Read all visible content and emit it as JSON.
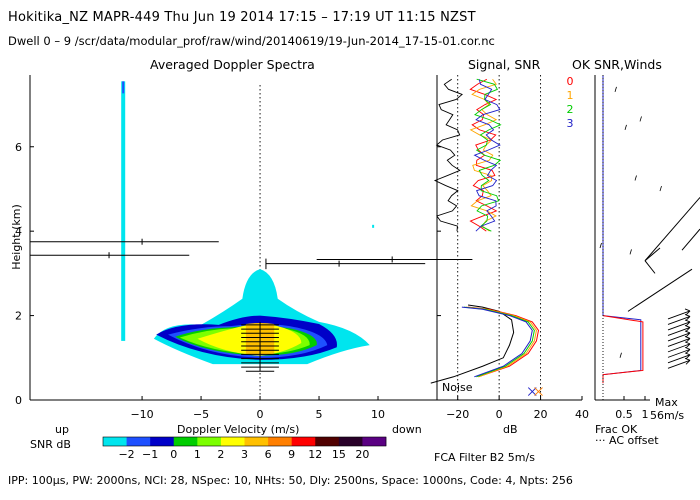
{
  "header": {
    "line1": "Hokitika_NZ   MAPR-449   Thu Jun 19 2014 17:15 – 17:19 UT 11:15 NZST",
    "line2": "Dwell   0 –  9    /scr/data/modular_prof/raw/wind/20140619/19-Jun-2014_17-15-01.cor.nc"
  },
  "panels": {
    "spectra_title": "Averaged Doppler Spectra",
    "snr_title": "Signal, SNR",
    "ok_title": "OK SNR,Winds"
  },
  "colors": {
    "snr_scale": [
      "#00e5ee",
      "#1e50ff",
      "#0000c8",
      "#00cd00",
      "#7cff00",
      "#ffff00",
      "#ffc000",
      "#ff7f00",
      "#ff0000",
      "#500000",
      "#280028",
      "#5a0082"
    ],
    "beam_0": "#ff0000",
    "beam_1": "#ffa500",
    "beam_2": "#00cd00",
    "beam_3": "#2020c8"
  },
  "colorbar": {
    "label": "SNR dB",
    "ticks": [
      "−2",
      "−1",
      "0",
      "1",
      "2",
      "3",
      "6",
      "9",
      "12",
      "15",
      "20"
    ]
  },
  "labels": {
    "up": "up",
    "down": "down",
    "noise": "Noise",
    "frac_ok": "Frac OK",
    "ac_offset": "··· AC offset",
    "max_label": "Max",
    "max_value": "56m/s",
    "fca": "FCA Filter B2   5m/s"
  },
  "footer": "IPP: 100μs,   PW: 2000ns,   NCI:  28,   NSpec: 10,  NHts: 50,   Dly: 2500ns,   Space: 1000ns,   Code: 4,   Npts: 256",
  "chart_data": [
    {
      "type": "heatmap",
      "title": "Averaged Doppler Spectra",
      "xlabel": "Doppler Velocity (m/s)",
      "ylabel": "Height (km)",
      "xlim": [
        -19.5,
        15
      ],
      "ylim": [
        0,
        7.7
      ],
      "x_ticks": [
        -10,
        -5,
        0,
        5,
        10
      ],
      "y_ticks": [
        0,
        2,
        4,
        6
      ],
      "colorbar_label": "SNR dB",
      "wind_markers": [
        {
          "height": 3.75,
          "span": [
            -19.5,
            -3.5
          ],
          "mark": -10
        },
        {
          "height": 3.43,
          "span": [
            -19.5,
            -6
          ],
          "mark": -12.8
        },
        {
          "height": 3.23,
          "span": [
            0.5,
            14
          ],
          "mark": 6.7
        },
        {
          "height": 3.33,
          "span": [
            4.8,
            18
          ],
          "mark": 11.2
        }
      ]
    },
    {
      "type": "line",
      "title": "Signal, SNR",
      "xlabel": "dB",
      "xlim": [
        -30,
        40
      ],
      "x_ticks": [
        -20,
        0,
        20,
        40
      ],
      "series": [
        {
          "name": "Noise",
          "x": [
            -33,
            -22,
            -8,
            2,
            5,
            7,
            6,
            0,
            -8,
            -15
          ],
          "y": [
            0.4,
            0.55,
            0.8,
            1.0,
            1.3,
            1.6,
            1.9,
            2.1,
            2.2,
            2.25
          ]
        },
        {
          "name": "0",
          "x": [
            -10,
            5,
            14,
            18,
            19,
            16,
            8,
            -5,
            -15
          ],
          "y": [
            0.55,
            0.8,
            1.1,
            1.4,
            1.65,
            1.85,
            2.0,
            2.15,
            2.2
          ]
        },
        {
          "name": "1",
          "x": [
            -10,
            4,
            13,
            17,
            18,
            15,
            7,
            -6,
            -16
          ],
          "y": [
            0.55,
            0.8,
            1.1,
            1.4,
            1.65,
            1.85,
            2.0,
            2.15,
            2.2
          ]
        },
        {
          "name": "2",
          "x": [
            -11,
            3,
            12,
            16,
            17,
            14,
            6,
            -7,
            -17
          ],
          "y": [
            0.55,
            0.8,
            1.1,
            1.4,
            1.65,
            1.85,
            2.0,
            2.15,
            2.2
          ]
        },
        {
          "name": "3",
          "x": [
            -12,
            2,
            11,
            15,
            16,
            13,
            5,
            -8,
            -18
          ],
          "y": [
            0.55,
            0.8,
            1.1,
            1.4,
            1.65,
            1.85,
            2.0,
            2.15,
            2.2
          ]
        }
      ]
    },
    {
      "type": "line",
      "title": "OK SNR,Winds",
      "xlabel": "Frac OK",
      "xlim": [
        0,
        1
      ],
      "x_ticks": [
        0.5,
        1
      ],
      "series": [
        {
          "name": "Frac OK",
          "x": [
            0.0,
            0.0,
            0.9,
            0.9,
            0.0,
            0.0
          ],
          "y": [
            0.4,
            0.6,
            0.7,
            1.9,
            2.0,
            7.7
          ]
        }
      ],
      "max_wind": "56m/s"
    }
  ]
}
